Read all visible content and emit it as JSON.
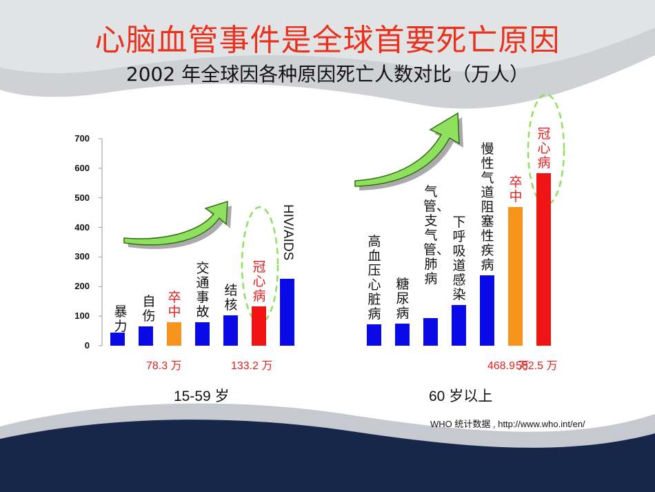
{
  "title": "心脑血管事件是全球首要死亡原因",
  "subtitle": "2002 年全球因各种原因死亡人数对比（万人）",
  "source": "WHO 统计数据 , http://www.who.int/en/",
  "colors": {
    "title": "#e8321e",
    "blue": "#0a0ae6",
    "orange": "#f7941d",
    "red": "#f01414",
    "highlight": "#e21e1e",
    "arrow": "#90e060",
    "navy": "#1a2a4c"
  },
  "chart_data": {
    "type": "bar",
    "title": "2002 年全球因各种原因死亡人数对比（万人）",
    "ylim": [
      0,
      700
    ],
    "yticks": [
      "0",
      "100",
      "200",
      "300",
      "400",
      "500",
      "600",
      "700"
    ],
    "groups": [
      {
        "name": "15-59 岁",
        "bars": [
          {
            "label": "暴力",
            "value": 45,
            "color": "blue"
          },
          {
            "label": "自伤",
            "value": 66,
            "color": "blue"
          },
          {
            "label": "卒中",
            "value": 78.3,
            "color": "orange",
            "annotation": "78.3 万"
          },
          {
            "label": "交通事故",
            "value": 80,
            "color": "blue"
          },
          {
            "label": "结核",
            "value": 103,
            "color": "blue"
          },
          {
            "label": "冠心病",
            "value": 133.2,
            "color": "red",
            "annotation": "133.2 万"
          },
          {
            "label": "HIV/AIDS",
            "value": 226,
            "color": "blue"
          }
        ]
      },
      {
        "name": "60 岁以上",
        "bars": [
          {
            "label": "高血压心脏病",
            "value": 73,
            "color": "blue"
          },
          {
            "label": "糖尿病",
            "value": 74,
            "color": "blue"
          },
          {
            "label": "气管、支气管、肺病",
            "value": 93,
            "color": "blue"
          },
          {
            "label": "下呼吸道感染",
            "value": 138,
            "color": "blue"
          },
          {
            "label": "慢性气道阻塞性疾病",
            "value": 238,
            "color": "blue"
          },
          {
            "label": "卒中",
            "value": 468.9,
            "color": "orange",
            "annotation": "468.9 万"
          },
          {
            "label": "冠心病",
            "value": 582.5,
            "color": "red",
            "annotation": "582.5 万"
          }
        ]
      }
    ]
  }
}
